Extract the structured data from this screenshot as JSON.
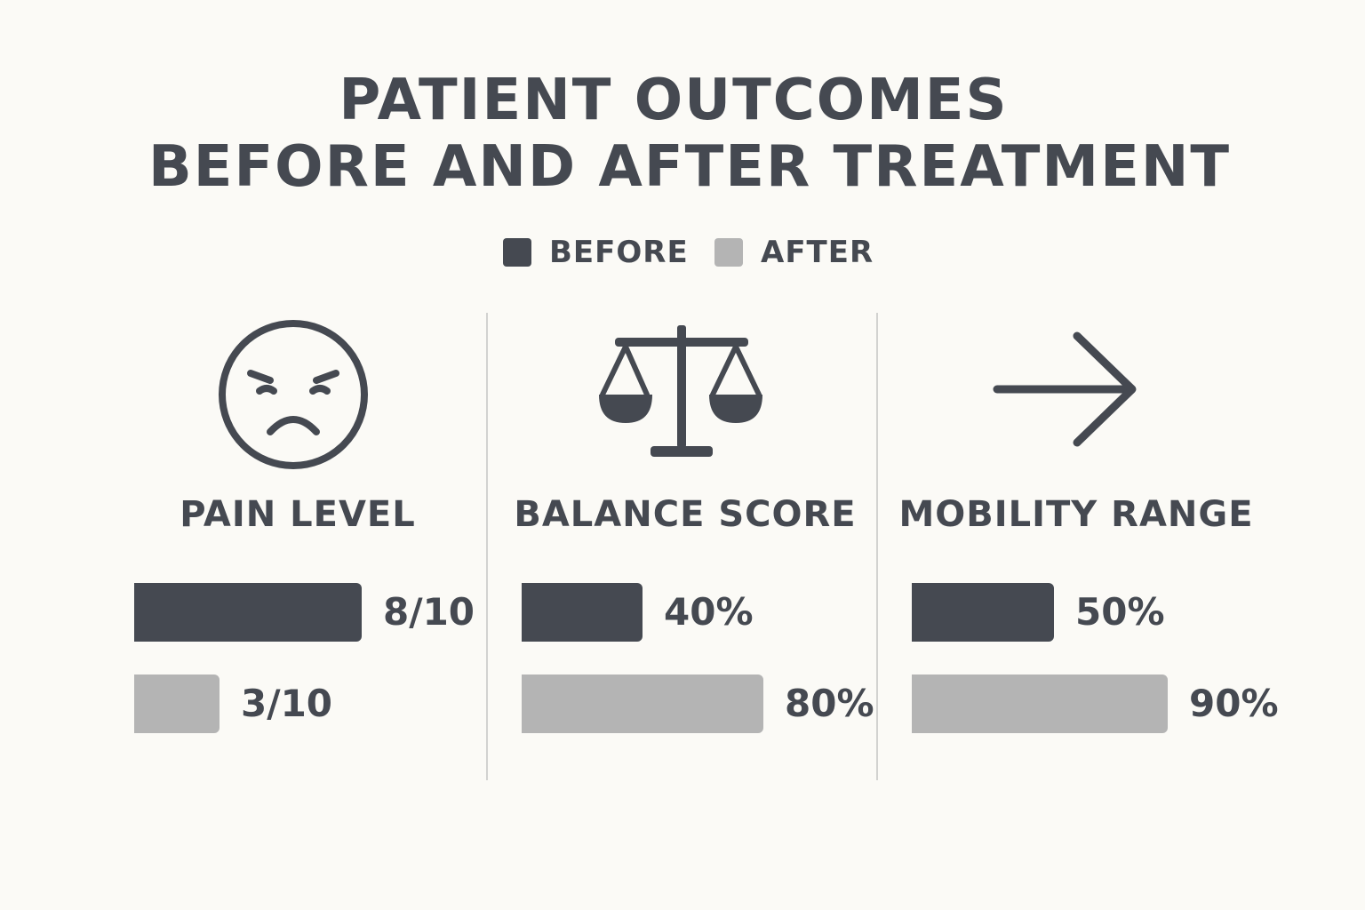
{
  "title": {
    "line1": "PATIENT OUTCOMES",
    "line2": "BEFORE AND AFTER TREATMENT"
  },
  "legend": {
    "before": {
      "label": "BEFORE",
      "color": "#454951"
    },
    "after": {
      "label": "AFTER",
      "color": "#b4b4b4"
    }
  },
  "icons": [
    "sad-face-icon",
    "balance-scale-icon",
    "arrow-right-icon"
  ],
  "chart_data": {
    "type": "bar",
    "title": "PATIENT OUTCOMES BEFORE AND AFTER TREATMENT",
    "legend_position": "top-center",
    "grid": false,
    "series_order": [
      "BEFORE",
      "AFTER"
    ],
    "panels": [
      {
        "label": "PAIN LEVEL",
        "icon": "sad-face-icon",
        "before": {
          "value": 8,
          "max": 10,
          "label": "8/10"
        },
        "after": {
          "value": 3,
          "max": 10,
          "label": "3/10"
        }
      },
      {
        "label": "BALANCE SCORE",
        "icon": "balance-scale-icon",
        "before": {
          "value": 40,
          "max": 100,
          "label": "40%"
        },
        "after": {
          "value": 80,
          "max": 100,
          "label": "80%"
        }
      },
      {
        "label": "MOBILITY RANGE",
        "icon": "arrow-right-icon",
        "before": {
          "value": 50,
          "max": 100,
          "label": "50%"
        },
        "after": {
          "value": 90,
          "max": 100,
          "label": "90%"
        }
      }
    ]
  }
}
